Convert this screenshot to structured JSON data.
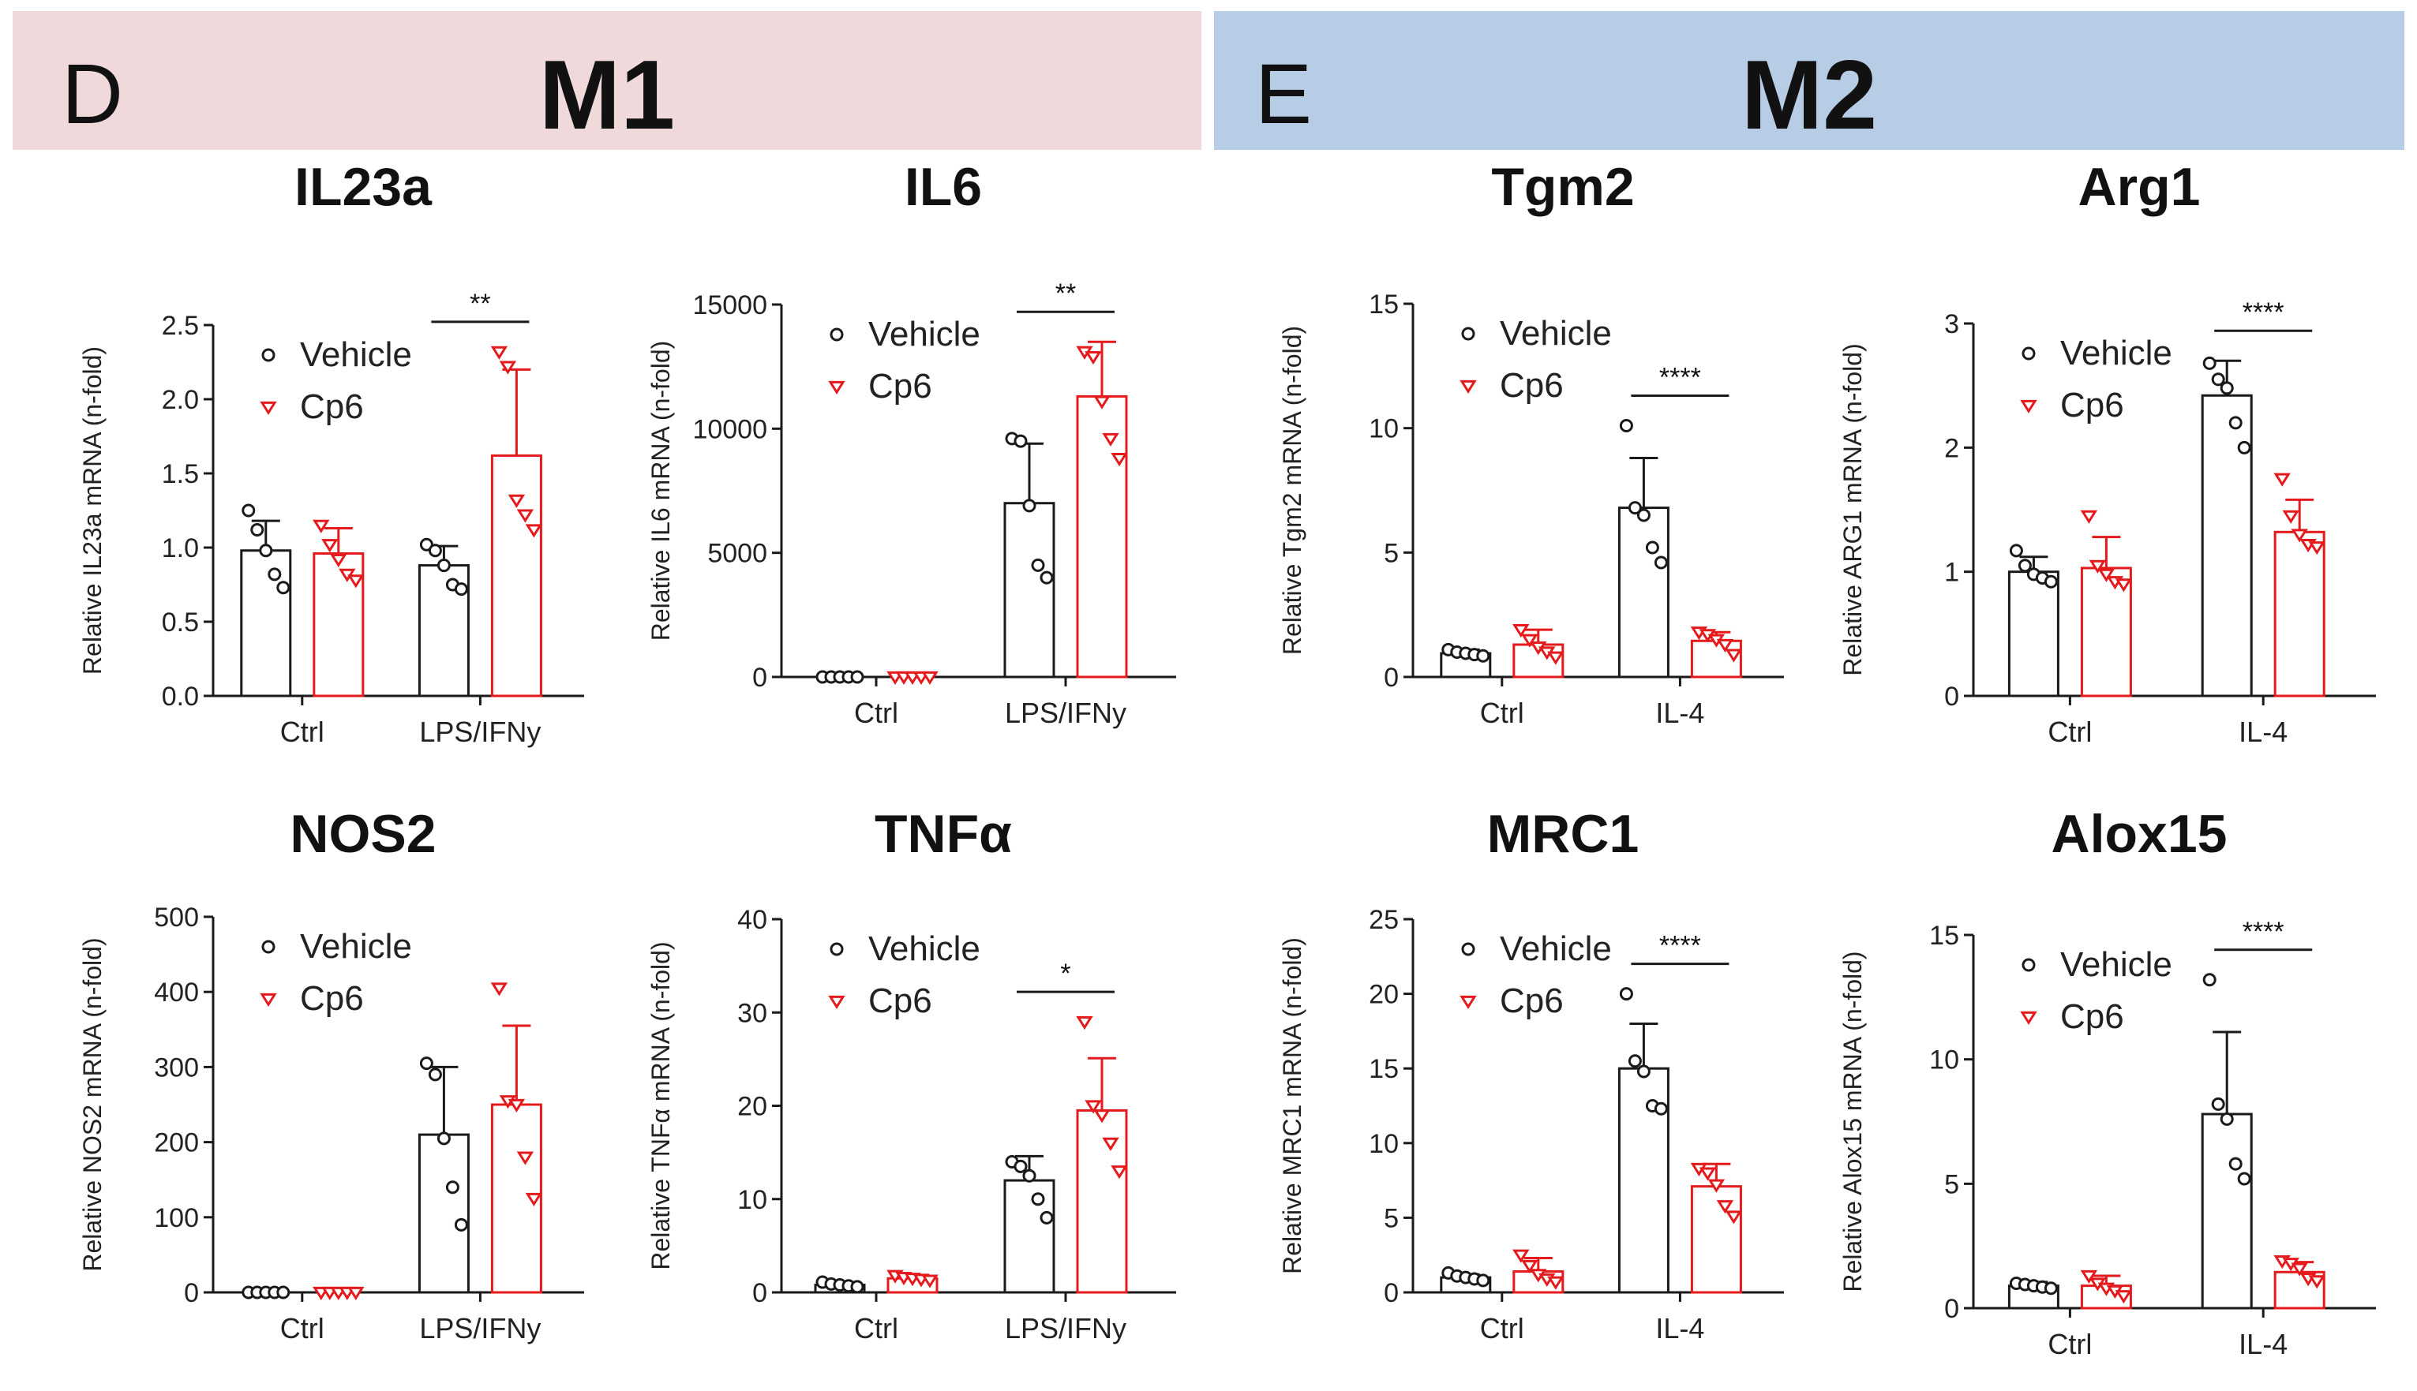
{
  "banners": {
    "m1": {
      "letter": "D",
      "title": "M1"
    },
    "m2": {
      "letter": "E",
      "title": "M2"
    }
  },
  "colors": {
    "vehicle": "#1a1a1a",
    "cp6": "#e41a1c",
    "axis": "#1a1a1a"
  },
  "chart_data": [
    {
      "id": "il23a",
      "type": "bar",
      "title": "IL23a",
      "ylabel": "Relative IL23a mRNA (n-fold)",
      "categories": [
        "Ctrl",
        "LPS/IFNy"
      ],
      "ylim": [
        0,
        2.5
      ],
      "yticks": [
        0,
        0.5,
        1.0,
        1.5,
        2.0,
        2.5
      ],
      "yticklabels": [
        "0.0",
        "0.5",
        "1.0",
        "1.5",
        "2.0",
        "2.5"
      ],
      "legend": [
        "Vehicle",
        "Cp6"
      ],
      "series": [
        {
          "name": "Vehicle",
          "means": [
            0.98,
            0.88
          ],
          "sd": [
            0.2,
            0.13
          ],
          "points": [
            [
              1.25,
              1.12,
              0.98,
              0.82,
              0.73
            ],
            [
              1.02,
              0.98,
              0.88,
              0.75,
              0.72
            ]
          ]
        },
        {
          "name": "Cp6",
          "means": [
            0.96,
            1.62
          ],
          "sd": [
            0.17,
            0.58
          ],
          "points": [
            [
              1.15,
              1.02,
              0.92,
              0.82,
              0.78
            ],
            [
              2.32,
              2.22,
              1.32,
              1.22,
              1.12
            ]
          ]
        }
      ],
      "significance": [
        {
          "group": 1,
          "label": "**"
        }
      ]
    },
    {
      "id": "il6",
      "type": "bar",
      "title": "IL6",
      "ylabel": "Relative IL6 mRNA (n-fold)",
      "categories": [
        "Ctrl",
        "LPS/IFNy"
      ],
      "ylim": [
        0,
        15000
      ],
      "yticks": [
        0,
        5000,
        10000,
        15000
      ],
      "yticklabels": [
        "0",
        "5000",
        "10000",
        "15000"
      ],
      "legend": [
        "Vehicle",
        "Cp6"
      ],
      "series": [
        {
          "name": "Vehicle",
          "means": [
            0,
            7000
          ],
          "sd": [
            0,
            2400
          ],
          "points": [
            [
              0,
              0,
              0,
              0,
              0
            ],
            [
              9600,
              9500,
              6900,
              4500,
              4000
            ]
          ]
        },
        {
          "name": "Cp6",
          "means": [
            0,
            11300
          ],
          "sd": [
            0,
            2200
          ],
          "points": [
            [
              0,
              0,
              0,
              0,
              0
            ],
            [
              13100,
              12900,
              11100,
              9600,
              8800
            ]
          ]
        }
      ],
      "significance": [
        {
          "group": 1,
          "label": "**"
        }
      ]
    },
    {
      "id": "tgm2",
      "type": "bar",
      "title": "Tgm2",
      "ylabel": "Relative Tgm2 mRNA (n-fold)",
      "categories": [
        "Ctrl",
        "IL-4"
      ],
      "ylim": [
        0,
        15
      ],
      "yticks": [
        0,
        5,
        10,
        15
      ],
      "yticklabels": [
        "0",
        "5",
        "10",
        "15"
      ],
      "legend": [
        "Vehicle",
        "Cp6"
      ],
      "series": [
        {
          "name": "Vehicle",
          "means": [
            0.95,
            6.8
          ],
          "sd": [
            0.15,
            2.0
          ],
          "points": [
            [
              1.1,
              1.0,
              0.95,
              0.9,
              0.85
            ],
            [
              10.1,
              6.8,
              6.5,
              5.2,
              4.6
            ]
          ]
        },
        {
          "name": "Cp6",
          "means": [
            1.3,
            1.45
          ],
          "sd": [
            0.6,
            0.35
          ],
          "points": [
            [
              1.9,
              1.5,
              1.2,
              1.0,
              0.8
            ],
            [
              1.8,
              1.7,
              1.5,
              1.3,
              0.9
            ]
          ]
        }
      ],
      "significance": [
        {
          "group": 1,
          "label": "****"
        }
      ]
    },
    {
      "id": "arg1",
      "type": "bar",
      "title": "Arg1",
      "ylabel": "Relative ARG1 mRNA (n-fold)",
      "categories": [
        "Ctrl",
        "IL-4"
      ],
      "ylim": [
        0,
        3
      ],
      "yticks": [
        0,
        1,
        2,
        3
      ],
      "yticklabels": [
        "0",
        "1",
        "2",
        "3"
      ],
      "legend": [
        "Vehicle",
        "Cp6"
      ],
      "series": [
        {
          "name": "Vehicle",
          "means": [
            1.0,
            2.42
          ],
          "sd": [
            0.12,
            0.28
          ],
          "points": [
            [
              1.17,
              1.05,
              0.98,
              0.95,
              0.92
            ],
            [
              2.68,
              2.55,
              2.48,
              2.2,
              2.0
            ]
          ]
        },
        {
          "name": "Cp6",
          "means": [
            1.03,
            1.32
          ],
          "sd": [
            0.25,
            0.26
          ],
          "points": [
            [
              1.45,
              1.05,
              0.98,
              0.92,
              0.9
            ],
            [
              1.75,
              1.45,
              1.3,
              1.22,
              1.2
            ]
          ]
        }
      ],
      "significance": [
        {
          "group": 1,
          "label": "****"
        }
      ]
    },
    {
      "id": "nos2",
      "type": "bar",
      "title": "NOS2",
      "ylabel": "Relative NOS2 mRNA (n-fold)",
      "categories": [
        "Ctrl",
        "LPS/IFNy"
      ],
      "ylim": [
        0,
        500
      ],
      "yticks": [
        0,
        100,
        200,
        300,
        400,
        500
      ],
      "yticklabels": [
        "0",
        "100",
        "200",
        "300",
        "400",
        "500"
      ],
      "legend": [
        "Vehicle",
        "Cp6"
      ],
      "series": [
        {
          "name": "Vehicle",
          "means": [
            0,
            210
          ],
          "sd": [
            0,
            90
          ],
          "points": [
            [
              0,
              0,
              0,
              0,
              0
            ],
            [
              305,
              290,
              205,
              140,
              90
            ]
          ]
        },
        {
          "name": "Cp6",
          "means": [
            0,
            250
          ],
          "sd": [
            0,
            105
          ],
          "points": [
            [
              0,
              0,
              0,
              0,
              0
            ],
            [
              405,
              255,
              250,
              180,
              125
            ]
          ]
        }
      ],
      "significance": []
    },
    {
      "id": "tnfa",
      "type": "bar",
      "title": "TNFα",
      "ylabel": "Relative TNFα mRNA (n-fold)",
      "categories": [
        "Ctrl",
        "LPS/IFNy"
      ],
      "ylim": [
        0,
        40
      ],
      "yticks": [
        0,
        10,
        20,
        30,
        40
      ],
      "yticklabels": [
        "0",
        "10",
        "20",
        "30",
        "40"
      ],
      "legend": [
        "Vehicle",
        "Cp6"
      ],
      "series": [
        {
          "name": "Vehicle",
          "means": [
            0.8,
            12
          ],
          "sd": [
            0.3,
            2.6
          ],
          "points": [
            [
              1.1,
              0.9,
              0.8,
              0.7,
              0.6
            ],
            [
              14,
              13.5,
              12.5,
              10,
              8
            ]
          ]
        },
        {
          "name": "Cp6",
          "means": [
            1.5,
            19.5
          ],
          "sd": [
            0.3,
            5.6
          ],
          "points": [
            [
              1.8,
              1.6,
              1.5,
              1.4,
              1.3
            ],
            [
              29,
              20,
              19,
              16,
              13
            ]
          ]
        }
      ],
      "significance": [
        {
          "group": 1,
          "label": "*"
        }
      ]
    },
    {
      "id": "mrc1",
      "type": "bar",
      "title": "MRC1",
      "ylabel": "Relative MRC1 mRNA (n-fold)",
      "categories": [
        "Ctrl",
        "IL-4"
      ],
      "ylim": [
        0,
        25
      ],
      "yticks": [
        0,
        5,
        10,
        15,
        20,
        25
      ],
      "yticklabels": [
        "0",
        "5",
        "10",
        "15",
        "20",
        "25"
      ],
      "legend": [
        "Vehicle",
        "Cp6"
      ],
      "series": [
        {
          "name": "Vehicle",
          "means": [
            1.0,
            15
          ],
          "sd": [
            0.2,
            3.0
          ],
          "points": [
            [
              1.3,
              1.1,
              1.0,
              0.9,
              0.8
            ],
            [
              20,
              15.5,
              14.8,
              12.5,
              12.3
            ]
          ]
        },
        {
          "name": "Cp6",
          "means": [
            1.4,
            7.1
          ],
          "sd": [
            0.9,
            1.5
          ],
          "points": [
            [
              2.5,
              1.8,
              1.2,
              0.9,
              0.7
            ],
            [
              8.3,
              8,
              7.2,
              5.8,
              5.1
            ]
          ]
        }
      ],
      "significance": [
        {
          "group": 1,
          "label": "****"
        }
      ]
    },
    {
      "id": "alox15",
      "type": "bar",
      "title": "Alox15",
      "ylabel": "Relative Alox15 mRNA (n-fold)",
      "categories": [
        "Ctrl",
        "IL-4"
      ],
      "ylim": [
        0,
        15
      ],
      "yticks": [
        0,
        5,
        10,
        15
      ],
      "yticklabels": [
        "0",
        "5",
        "10",
        "15"
      ],
      "legend": [
        "Vehicle",
        "Cp6"
      ],
      "series": [
        {
          "name": "Vehicle",
          "means": [
            0.9,
            7.8
          ],
          "sd": [
            0.15,
            3.3
          ],
          "points": [
            [
              1.0,
              0.95,
              0.9,
              0.85,
              0.8
            ],
            [
              13.2,
              8.2,
              7.6,
              5.8,
              5.2
            ]
          ]
        },
        {
          "name": "Cp6",
          "means": [
            0.9,
            1.45
          ],
          "sd": [
            0.4,
            0.4
          ],
          "points": [
            [
              1.3,
              1.0,
              0.8,
              0.7,
              0.5
            ],
            [
              1.9,
              1.8,
              1.6,
              1.2,
              1.1
            ]
          ]
        }
      ],
      "significance": [
        {
          "group": 1,
          "label": "****"
        }
      ]
    }
  ]
}
